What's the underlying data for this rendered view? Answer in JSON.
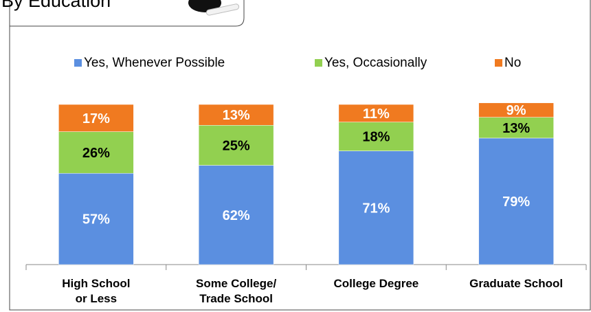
{
  "chart_data": {
    "type": "stacked_bar",
    "title": "By Education",
    "categories": [
      "High School\nor Less",
      "Some College/\nTrade School",
      "College Degree",
      "Graduate School"
    ],
    "ylim": [
      0,
      100
    ],
    "series": [
      {
        "name": "Yes, Whenever Possible",
        "color": "#5b8fe0",
        "values": [
          57,
          62,
          71,
          79
        ],
        "value_labels": [
          "57%",
          "62%",
          "71%",
          "79%"
        ],
        "label_color": "#ffffff"
      },
      {
        "name": "Yes, Occasionally",
        "color": "#92d050",
        "values": [
          26,
          25,
          18,
          13
        ],
        "value_labels": [
          "26%",
          "25%",
          "18%",
          "13%"
        ],
        "label_color": "#000000"
      },
      {
        "name": "No",
        "color": "#f07a20",
        "values": [
          17,
          13,
          11,
          9
        ],
        "value_labels": [
          "17%",
          "13%",
          "11%",
          "9%"
        ],
        "label_color": "#ffffff"
      }
    ]
  }
}
